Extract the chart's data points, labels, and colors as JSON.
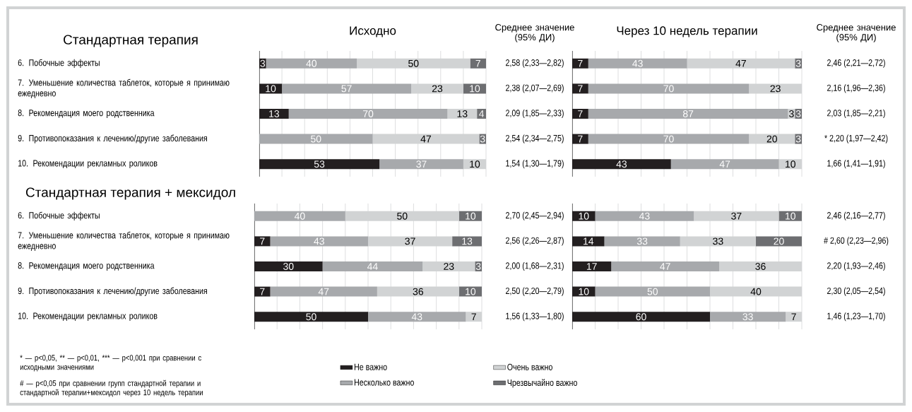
{
  "chart_data": [
    {
      "type": "bar",
      "orientation": "horizontal",
      "stacked": true,
      "title": "Исходно",
      "ylabel": "Стандартная терапия",
      "y2label": "Среднее значение (95% ДИ)",
      "categories": [
        "6. Побочные эффекты",
        "7. Уменьшение количества таблеток, которые я принимаю ежедневно",
        "8. Рекомендация моего родственника",
        "9. Противопоказания к лечению/другие заболевания",
        "10. Рекомендации рекламных роликов"
      ],
      "series": [
        {
          "color": "#231f20",
          "values": [
            3,
            10,
            13,
            0,
            53
          ],
          "value_labels": [
            "3",
            "10",
            "13",
            null,
            "53"
          ]
        },
        {
          "color": "#a7a9ac",
          "values": [
            40,
            57,
            70,
            50,
            37
          ],
          "value_labels": [
            "40",
            "57",
            "70",
            "50",
            "37"
          ]
        },
        {
          "color": "#d1d3d4",
          "values": [
            50,
            23,
            13,
            47,
            10
          ],
          "value_labels": [
            "50",
            "23",
            "13",
            "47",
            "10"
          ]
        },
        {
          "color": "#6d6e71",
          "values": [
            7,
            10,
            4,
            3,
            0
          ],
          "value_labels": [
            "7",
            "10",
            "4",
            "3",
            null
          ]
        }
      ],
      "grid": "x",
      "annotations": [
        "2,58 (2,33—2,82)",
        "2,38 (2,07—2,69)",
        "2,09 (1,85—2,33)",
        "2,54 (2,34—2,75)",
        "1,54 (1,30—1,79)"
      ]
    },
    {
      "type": "bar",
      "orientation": "horizontal",
      "stacked": true,
      "title": "Через 10 недель терапии",
      "y2label": "Среднее значение (95% ДИ)",
      "categories": [
        null,
        null,
        null,
        null,
        null
      ],
      "series": [
        {
          "color": "#231f20",
          "values": [
            7,
            7,
            7,
            7,
            43
          ],
          "value_labels": [
            "7",
            "7",
            "7",
            "7",
            "43"
          ]
        },
        {
          "color": "#a7a9ac",
          "values": [
            43,
            70,
            87,
            70,
            47
          ],
          "value_labels": [
            "43",
            "70",
            "87",
            "70",
            "47"
          ]
        },
        {
          "color": "#d1d3d4",
          "values": [
            47,
            23,
            3,
            20,
            10
          ],
          "value_labels": [
            "47",
            "23",
            "3",
            "20",
            "10"
          ]
        },
        {
          "color": "#6d6e71",
          "values": [
            3,
            0,
            3,
            3,
            0
          ],
          "value_labels": [
            "3",
            null,
            "3",
            "3",
            null
          ]
        }
      ],
      "grid": "x",
      "annotations": [
        "2,46 (2,21—2,72)",
        "2,16 (1,96—2,36)",
        "2,03 (1,85—2,21)",
        "* 2,20 (1,97—2,42)",
        "1,66 (1,41—1,91)"
      ]
    },
    {
      "type": "bar",
      "orientation": "horizontal",
      "stacked": true,
      "ylabel": "Стандартная терапия + мексидол",
      "categories": [
        "6. Побочные эффекты",
        "7. Уменьшение количества таблеток, которые я принимаю ежедневно",
        "8. Рекомендация моего родственника",
        "9. Противопоказания к лечению/другие заболевания",
        "10. Рекомендации рекламных роликов"
      ],
      "series": [
        {
          "color": "#231f20",
          "values": [
            0,
            7,
            30,
            7,
            50
          ],
          "value_labels": [
            null,
            "7",
            "30",
            "7",
            "50"
          ]
        },
        {
          "color": "#a7a9ac",
          "values": [
            40,
            43,
            44,
            47,
            43
          ],
          "value_labels": [
            "40",
            "43",
            "44",
            "47",
            "43"
          ]
        },
        {
          "color": "#d1d3d4",
          "values": [
            50,
            37,
            23,
            36,
            7
          ],
          "value_labels": [
            "50",
            "37",
            "23",
            "36",
            "7"
          ]
        },
        {
          "color": "#6d6e71",
          "values": [
            10,
            13,
            3,
            10,
            0
          ],
          "value_labels": [
            "10",
            "13",
            "3",
            "10",
            null
          ]
        }
      ],
      "grid": "x",
      "annotations": [
        "2,70 (2,45—2,94)",
        "2,56 (2,26—2,87)",
        "2,00 (1,68—2,31)",
        "2,50 (2,20—2,79)",
        "1,56 (1,33—1,80)",
        "* — p<0,05, ** — p<0,01, *** — p<0,001 при сравнении с исходными значениями",
        "# — p<0,05 при сравнении групп стандартной терапии и стандартной терапии+мексидол через 10 недель терапии"
      ]
    },
    {
      "type": "bar",
      "orientation": "horizontal",
      "stacked": true,
      "categories": [
        null,
        null,
        null,
        null,
        null
      ],
      "series": [
        {
          "name": "Не важно",
          "color": "#231f20",
          "values": [
            10,
            14,
            17,
            10,
            60
          ],
          "value_labels": [
            "10",
            "14",
            "17",
            "10",
            "60"
          ]
        },
        {
          "name": "Несколько важно",
          "color": "#a7a9ac",
          "values": [
            43,
            33,
            47,
            50,
            33
          ],
          "value_labels": [
            "43",
            "33",
            "47",
            "50",
            "33"
          ]
        },
        {
          "name": "Очень важно",
          "color": "#d1d3d4",
          "values": [
            37,
            33,
            36,
            40,
            7
          ],
          "value_labels": [
            "37",
            "33",
            "36",
            "40",
            "7"
          ]
        },
        {
          "name": "Чрезвычайно важно",
          "color": "#6d6e71",
          "values": [
            10,
            20,
            0,
            0,
            0
          ],
          "value_labels": [
            "10",
            "20",
            null,
            null,
            null
          ]
        }
      ],
      "grid": "x",
      "legend": "bottom",
      "annotations": [
        "2,46 (2,16—2,77)",
        "# 2,60 (2,23—2,96)",
        "2,20 (1,93—2,46)",
        "2,30 (2,05—2,54)",
        "1,46 (1,23—1,70)"
      ]
    }
  ]
}
